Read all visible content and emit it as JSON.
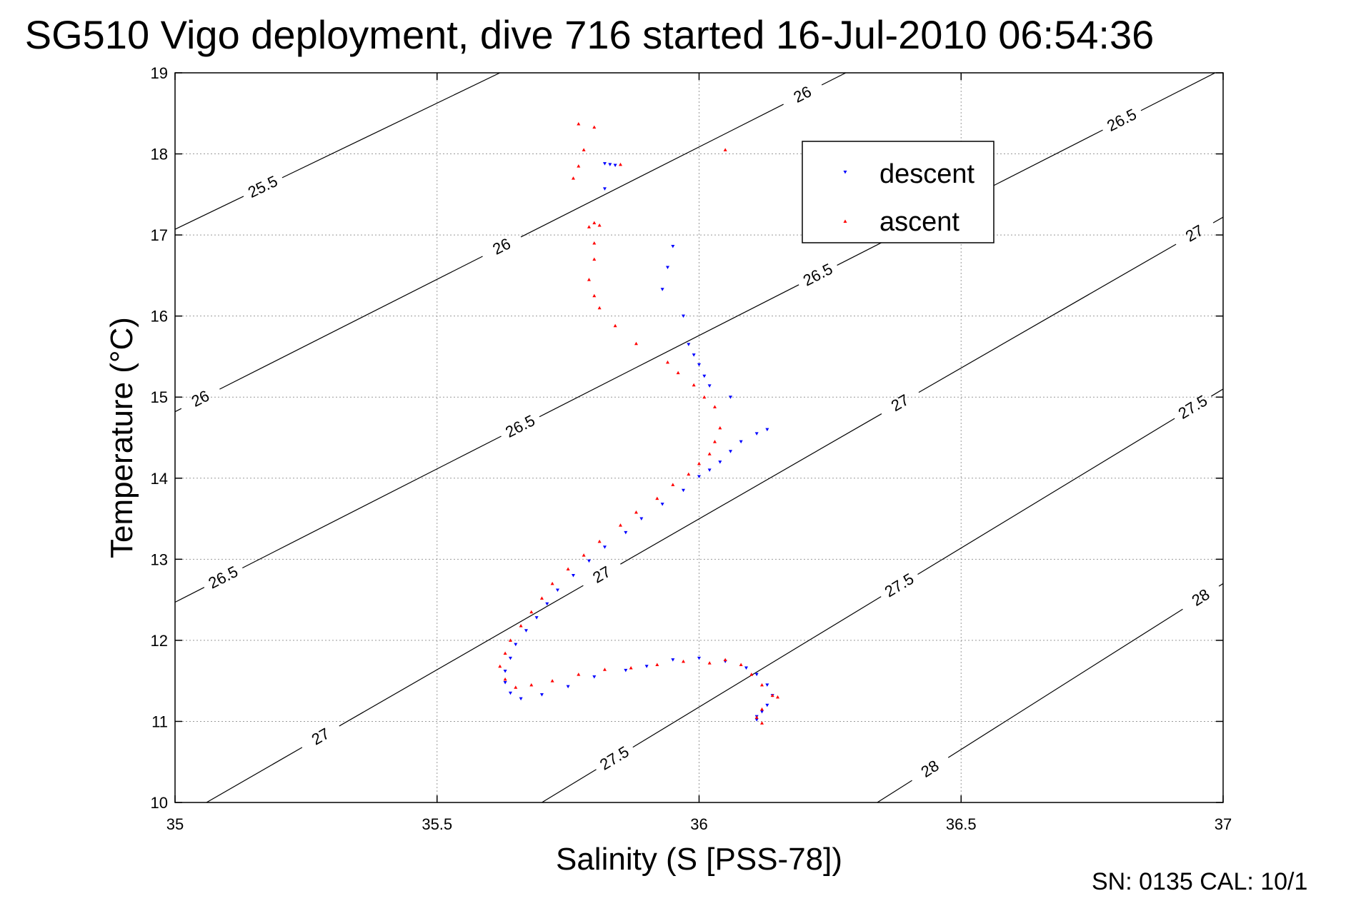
{
  "chart_data": {
    "type": "scatter",
    "title": "SG510 Vigo deployment, dive 716 started 16-Jul-2010 06:54:36",
    "xlabel": "Salinity (S [PSS-78])",
    "ylabel": "Temperature (°C)",
    "xlim": [
      35,
      37
    ],
    "ylim": [
      10,
      19
    ],
    "xticks": [
      "35",
      "35.5",
      "36",
      "36.5",
      "37"
    ],
    "yticks": [
      "10",
      "11",
      "12",
      "13",
      "14",
      "15",
      "16",
      "17",
      "18",
      "19"
    ],
    "grid": true,
    "legend_position": "upper-right",
    "footer": "SN: 0135  CAL: 10/1",
    "density_contours": [
      {
        "label": "25.5",
        "points": [
          [
            35,
            17.07
          ],
          [
            35.62,
            19.0
          ]
        ],
        "label_positions": [
          [
            35.17,
            17.56
          ]
        ]
      },
      {
        "label": "26",
        "points": [
          [
            35,
            14.82
          ],
          [
            36.28,
            19.0
          ]
        ],
        "label_positions": [
          [
            35.05,
            14.96
          ],
          [
            35.62,
            16.9
          ],
          [
            36.2,
            18.7
          ]
        ]
      },
      {
        "label": "26.5",
        "points": [
          [
            35,
            12.47
          ],
          [
            37,
            19.05
          ]
        ],
        "label_positions": [
          [
            35.09,
            12.8
          ],
          [
            35.65,
            14.75
          ],
          [
            36.21,
            16.72
          ],
          [
            36.8,
            18.5
          ]
        ]
      },
      {
        "label": "27",
        "points": [
          [
            35.06,
            10.0
          ],
          [
            37,
            17.22
          ]
        ],
        "label_positions": [
          [
            35.27,
            10.9
          ],
          [
            35.8,
            12.97
          ],
          [
            36.37,
            15.08
          ],
          [
            36.94,
            17.08
          ]
        ]
      },
      {
        "label": "27.5",
        "points": [
          [
            35.7,
            10.0
          ],
          [
            37,
            15.1
          ]
        ],
        "label_positions": [
          [
            35.84,
            10.53
          ],
          [
            36.38,
            12.7
          ],
          [
            36.94,
            14.9
          ]
        ]
      },
      {
        "label": "28",
        "points": [
          [
            36.34,
            10.0
          ],
          [
            37,
            12.7
          ]
        ],
        "label_positions": [
          [
            36.45,
            10.32
          ],
          [
            36.96,
            12.5
          ]
        ]
      }
    ],
    "series": [
      {
        "name": "descent",
        "color": "#0000ff",
        "marker": "triangle-down",
        "points": [
          [
            35.82,
            17.88
          ],
          [
            35.83,
            17.87
          ],
          [
            35.84,
            17.86
          ],
          [
            35.82,
            17.57
          ],
          [
            35.95,
            16.86
          ],
          [
            35.94,
            16.6
          ],
          [
            35.93,
            16.33
          ],
          [
            35.97,
            16.0
          ],
          [
            35.98,
            15.65
          ],
          [
            35.99,
            15.52
          ],
          [
            36.0,
            15.4
          ],
          [
            36.01,
            15.26
          ],
          [
            36.02,
            15.14
          ],
          [
            36.06,
            15.0
          ],
          [
            36.13,
            14.6
          ],
          [
            36.11,
            14.55
          ],
          [
            36.08,
            14.45
          ],
          [
            36.06,
            14.33
          ],
          [
            36.04,
            14.2
          ],
          [
            36.02,
            14.1
          ],
          [
            36.0,
            14.02
          ],
          [
            35.97,
            13.85
          ],
          [
            35.93,
            13.68
          ],
          [
            35.89,
            13.5
          ],
          [
            35.86,
            13.33
          ],
          [
            35.82,
            13.15
          ],
          [
            35.79,
            12.98
          ],
          [
            35.76,
            12.8
          ],
          [
            35.73,
            12.62
          ],
          [
            35.71,
            12.45
          ],
          [
            35.69,
            12.28
          ],
          [
            35.67,
            12.12
          ],
          [
            35.65,
            11.95
          ],
          [
            35.64,
            11.78
          ],
          [
            35.63,
            11.62
          ],
          [
            35.63,
            11.48
          ],
          [
            35.64,
            11.35
          ],
          [
            35.66,
            11.28
          ],
          [
            35.7,
            11.33
          ],
          [
            35.75,
            11.43
          ],
          [
            35.8,
            11.55
          ],
          [
            35.86,
            11.63
          ],
          [
            35.9,
            11.68
          ],
          [
            35.95,
            11.76
          ],
          [
            36.0,
            11.78
          ],
          [
            36.05,
            11.74
          ],
          [
            36.09,
            11.66
          ],
          [
            36.11,
            11.58
          ],
          [
            36.13,
            11.45
          ],
          [
            36.14,
            11.32
          ],
          [
            36.13,
            11.2
          ],
          [
            36.12,
            11.12
          ],
          [
            36.11,
            11.06
          ],
          [
            36.11,
            11.02
          ]
        ]
      },
      {
        "name": "ascent",
        "color": "#ff0000",
        "marker": "triangle-up",
        "points": [
          [
            35.77,
            18.37
          ],
          [
            35.8,
            18.33
          ],
          [
            35.78,
            18.05
          ],
          [
            35.77,
            17.85
          ],
          [
            35.85,
            17.87
          ],
          [
            35.76,
            17.7
          ],
          [
            35.8,
            17.15
          ],
          [
            35.81,
            17.12
          ],
          [
            35.79,
            17.1
          ],
          [
            35.8,
            16.9
          ],
          [
            35.8,
            16.7
          ],
          [
            35.79,
            16.45
          ],
          [
            35.8,
            16.25
          ],
          [
            35.81,
            16.1
          ],
          [
            35.84,
            15.88
          ],
          [
            35.88,
            15.66
          ],
          [
            35.94,
            15.43
          ],
          [
            35.96,
            15.3
          ],
          [
            35.99,
            15.15
          ],
          [
            36.01,
            15.0
          ],
          [
            36.03,
            14.88
          ],
          [
            36.04,
            14.62
          ],
          [
            36.03,
            14.45
          ],
          [
            36.02,
            14.3
          ],
          [
            36.0,
            14.18
          ],
          [
            35.98,
            14.05
          ],
          [
            35.95,
            13.92
          ],
          [
            35.92,
            13.75
          ],
          [
            35.88,
            13.58
          ],
          [
            35.85,
            13.42
          ],
          [
            35.81,
            13.22
          ],
          [
            35.78,
            13.05
          ],
          [
            35.75,
            12.88
          ],
          [
            35.72,
            12.7
          ],
          [
            35.7,
            12.52
          ],
          [
            35.68,
            12.35
          ],
          [
            35.66,
            12.18
          ],
          [
            35.64,
            12.0
          ],
          [
            35.63,
            11.84
          ],
          [
            35.62,
            11.68
          ],
          [
            35.63,
            11.52
          ],
          [
            35.65,
            11.42
          ],
          [
            35.68,
            11.45
          ],
          [
            35.72,
            11.5
          ],
          [
            35.77,
            11.58
          ],
          [
            35.82,
            11.64
          ],
          [
            35.87,
            11.66
          ],
          [
            35.92,
            11.7
          ],
          [
            35.97,
            11.74
          ],
          [
            36.02,
            11.72
          ],
          [
            36.05,
            11.76
          ],
          [
            36.08,
            11.7
          ],
          [
            36.1,
            11.58
          ],
          [
            36.12,
            11.45
          ],
          [
            36.14,
            11.32
          ],
          [
            36.15,
            11.3
          ],
          [
            36.12,
            11.15
          ],
          [
            36.11,
            11.05
          ],
          [
            36.12,
            10.98
          ],
          [
            36.05,
            18.05
          ]
        ]
      }
    ]
  }
}
